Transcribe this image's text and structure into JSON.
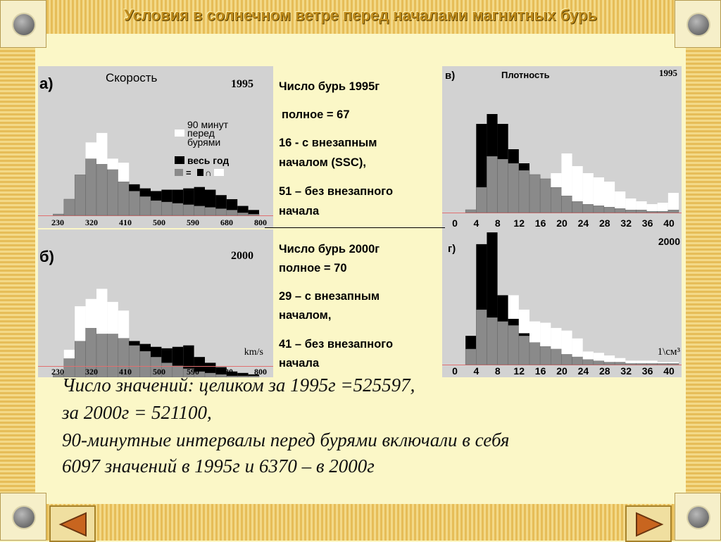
{
  "title": "Условия в солнечном ветре перед началами магнитных бурь",
  "colors": {
    "gray": "#8a8a8a",
    "black": "#000000",
    "white": "#ffffff",
    "panel": "#d2d2d2",
    "baseline": "#e07070"
  },
  "text_1995": {
    "l1": "Число бурь 1995г",
    "l2": "полное = 67",
    "l3": "16 - с внезапным",
    "l4": "началом (SSC),",
    "l5": "51 – без внезапного",
    "l6": "начала"
  },
  "text_2000": {
    "l1": "Число бурь 2000г",
    "l2": "полное = 70",
    "l3": "29 – с внезапным",
    "l4": "началом,",
    "l5": "41 – без внезапного",
    "l6": "начала"
  },
  "note": {
    "l1": "Число значений: целиком за 1995г =525597,",
    "l2": "за 2000г = 521100,",
    "l3": "90-минутные  интервалы перед бурями включали в себя",
    "l4": "6097 значений в 1995г и 6370 – в 2000г"
  },
  "nav": {
    "prev_icon": "left-triangle-icon",
    "next_icon": "right-triangle-icon"
  },
  "chart_data": [
    {
      "id": "a",
      "type": "bar",
      "panel_label": "а)",
      "title": "Скорость",
      "year": "1995",
      "unit": "",
      "x_ticks": [
        "230",
        "320",
        "410",
        "500",
        "590",
        "680",
        "800"
      ],
      "legend": {
        "l1": "90 минут",
        "l2": "перед",
        "l3": "бурями",
        "l4": "весь год",
        "l5": "= ",
        "l6": "∩"
      },
      "series_names": [
        "весь год",
        "90 минут перед бурями"
      ],
      "ylim": [
        0,
        100
      ],
      "gray": [
        0,
        1,
        12,
        30,
        42,
        38,
        34,
        25,
        18,
        14,
        11,
        10,
        9,
        8,
        7,
        6,
        5,
        4,
        2,
        1
      ],
      "black": [
        0,
        0,
        0,
        0,
        0,
        0,
        0,
        0,
        5,
        6,
        7,
        9,
        10,
        12,
        14,
        13,
        10,
        8,
        5,
        3
      ],
      "white": [
        0,
        0,
        0,
        0,
        12,
        23,
        8,
        14,
        0,
        0,
        0,
        0,
        0,
        0,
        0,
        0,
        0,
        0,
        0,
        0
      ],
      "white_top_idx": [
        4,
        5,
        6,
        7
      ]
    },
    {
      "id": "b",
      "type": "bar",
      "panel_label": "б)",
      "title": "",
      "year": "2000",
      "unit": "km/s",
      "x_ticks": [
        "230",
        "320",
        "410",
        "500",
        "590",
        "680",
        "800"
      ],
      "ylim": [
        0,
        100
      ],
      "gray": [
        0,
        2,
        13,
        25,
        34,
        30,
        30,
        27,
        22,
        18,
        14,
        10,
        8,
        6,
        4,
        3,
        2,
        1,
        1,
        1
      ],
      "black": [
        0,
        0,
        0,
        0,
        0,
        0,
        0,
        0,
        3,
        5,
        7,
        10,
        13,
        16,
        10,
        7,
        5,
        3,
        2,
        1
      ],
      "white": [
        0,
        0,
        6,
        24,
        20,
        31,
        22,
        19,
        0,
        0,
        0,
        0,
        0,
        0,
        0,
        0,
        0,
        0,
        0,
        0
      ]
    },
    {
      "id": "v",
      "type": "bar",
      "panel_label": "в)",
      "title": "Плотность",
      "year": "1995",
      "unit": "",
      "x_ticks": [
        "0",
        "4",
        "8",
        "12",
        "16",
        "20",
        "24",
        "28",
        "32",
        "36",
        "40"
      ],
      "ylim": [
        0,
        100
      ],
      "gray": [
        0,
        2,
        18,
        40,
        38,
        35,
        30,
        27,
        24,
        18,
        12,
        8,
        6,
        5,
        4,
        3,
        2,
        2,
        1,
        1,
        2
      ],
      "black": [
        0,
        0,
        45,
        30,
        25,
        10,
        5,
        0,
        0,
        0,
        0,
        0,
        0,
        0,
        0,
        0,
        0,
        0,
        0,
        0,
        0
      ],
      "white": [
        0,
        0,
        0,
        0,
        0,
        0,
        0,
        0,
        0,
        10,
        30,
        25,
        22,
        20,
        18,
        12,
        8,
        6,
        5,
        6,
        12
      ]
    },
    {
      "id": "g",
      "type": "bar",
      "panel_label": "г)",
      "title": "",
      "year": "2000",
      "unit": "1\\см³",
      "x_ticks": [
        "0",
        "4",
        "8",
        "12",
        "16",
        "20",
        "24",
        "28",
        "32",
        "36",
        "40"
      ],
      "ylim": [
        0,
        100
      ],
      "gray": [
        0,
        12,
        42,
        36,
        33,
        30,
        22,
        17,
        14,
        12,
        8,
        6,
        4,
        3,
        2,
        2,
        1,
        1,
        1,
        1,
        1
      ],
      "black": [
        0,
        10,
        50,
        65,
        20,
        5,
        2,
        0,
        0,
        0,
        0,
        0,
        0,
        0,
        0,
        0,
        0,
        0,
        0,
        0,
        0
      ],
      "white": [
        0,
        0,
        0,
        0,
        0,
        18,
        18,
        16,
        18,
        16,
        18,
        14,
        6,
        6,
        5,
        3,
        2,
        2,
        2,
        1,
        1
      ]
    }
  ]
}
